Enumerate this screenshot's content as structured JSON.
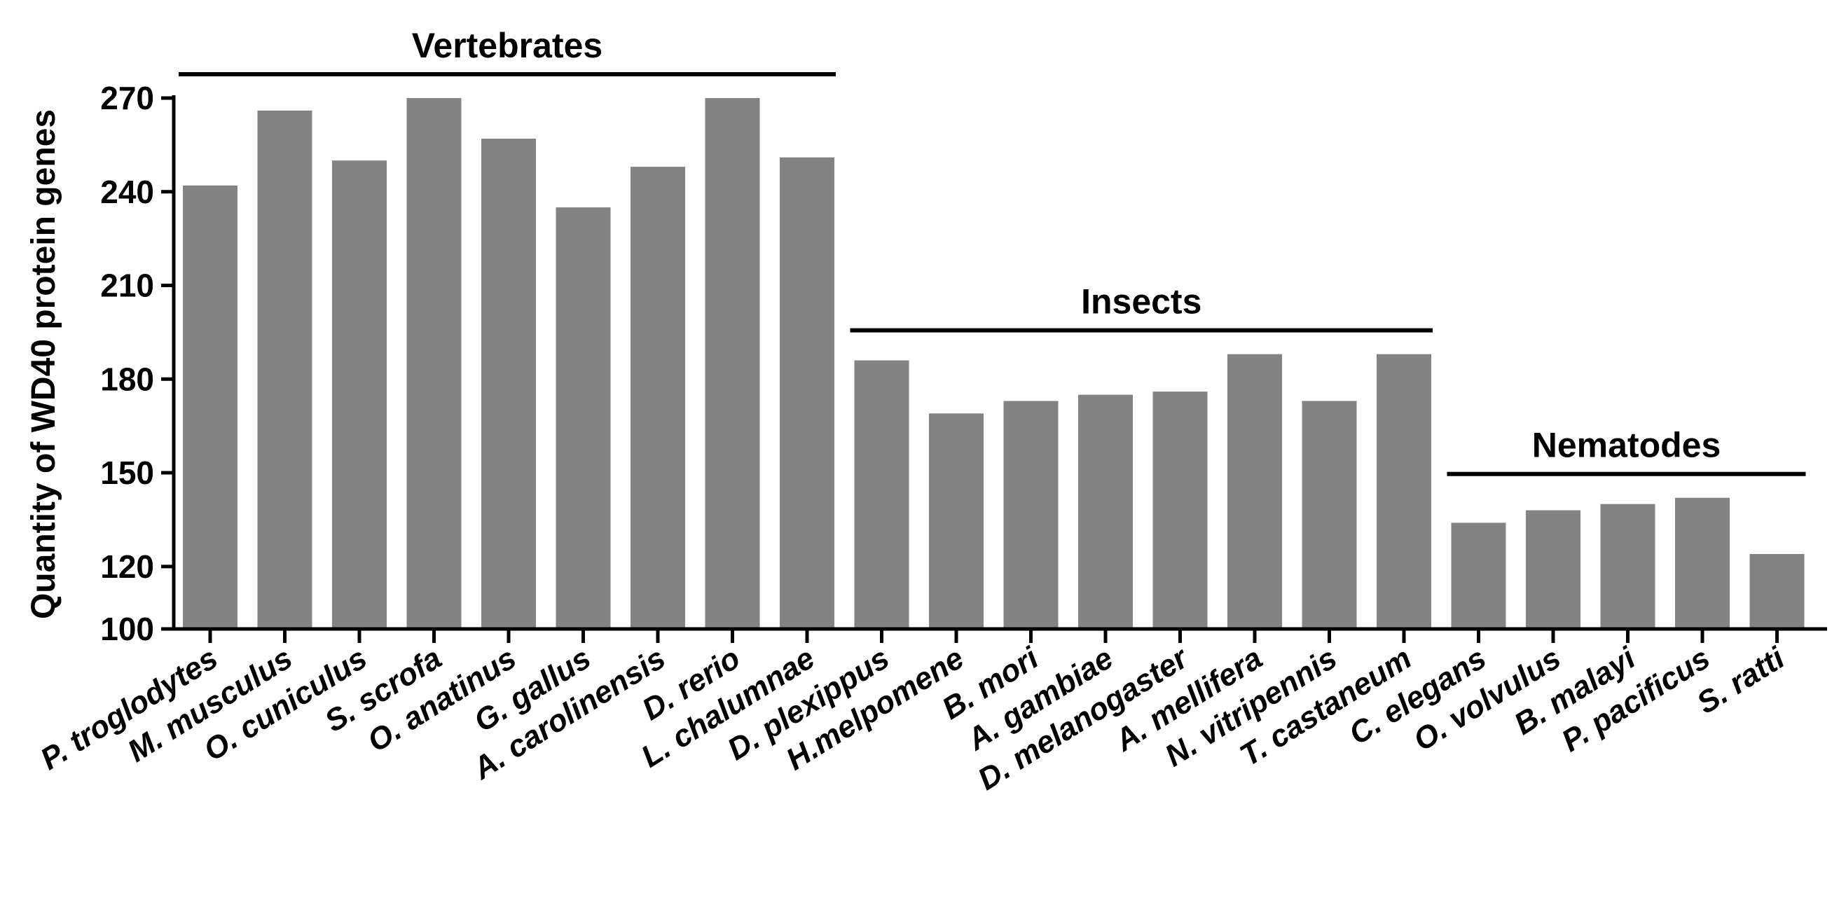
{
  "chart_data": {
    "type": "bar",
    "title": "",
    "xlabel": "",
    "ylabel": "Quantity of WD40 protein genes",
    "ylim": [
      100,
      270
    ],
    "yticks": [
      100,
      120,
      150,
      180,
      210,
      240,
      270
    ],
    "grid": false,
    "bar_color": "#838383",
    "categories": [
      "P. troglodytes",
      "M. musculus",
      "O. cuniculus",
      "S. scrofa",
      "O. anatinus",
      "G. gallus",
      "A. carolinensis",
      "D. rerio",
      "L. chalumnae",
      "D. plexippus",
      "H.melpomene",
      "B. mori",
      "A. gambiae",
      "D. melanogaster",
      "A. mellifera",
      "N. vitripennis",
      "T. castaneum",
      "C. elegans",
      "O. volvulus",
      "B. malayi",
      "P. pacificus",
      "S. ratti"
    ],
    "values": [
      242,
      266,
      250,
      270,
      257,
      235,
      248,
      270,
      251,
      186,
      169,
      173,
      175,
      176,
      188,
      173,
      188,
      134,
      138,
      140,
      142,
      124
    ],
    "groups": [
      {
        "label": "Vertebrates",
        "start": 0,
        "end": 8
      },
      {
        "label": "Insects",
        "start": 9,
        "end": 16
      },
      {
        "label": "Nematodes",
        "start": 17,
        "end": 21
      }
    ]
  }
}
